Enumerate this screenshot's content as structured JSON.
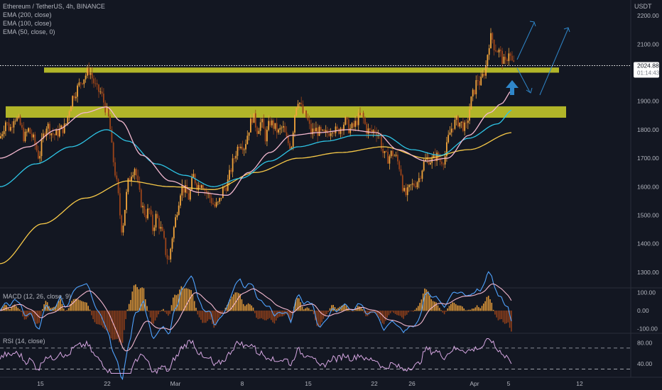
{
  "chart_data": {
    "type": "candlestick",
    "title": "Ethereum / TetherUS, 4h, BINANCE",
    "currency": "USDT",
    "legend": [
      "EMA (200, close)",
      "EMA (100, close)",
      "EMA (50, close, 0)"
    ],
    "price": {
      "current": "2024.88",
      "countdown": "01:14:43",
      "ticks": [
        "2200.00",
        "2100.00",
        "2000.00",
        "1900.00",
        "1800.00",
        "1700.00",
        "1600.00",
        "1500.00",
        "1400.00",
        "1300.00"
      ],
      "ylim": [
        1260,
        2240
      ],
      "close_path": [
        [
          0,
          1770
        ],
        [
          8,
          1830
        ],
        [
          14,
          1800
        ],
        [
          20,
          1850
        ],
        [
          28,
          1820
        ],
        [
          34,
          1770
        ],
        [
          40,
          1800
        ],
        [
          48,
          1760
        ],
        [
          55,
          1700
        ],
        [
          60,
          1770
        ],
        [
          66,
          1820
        ],
        [
          72,
          1790
        ],
        [
          78,
          1780
        ],
        [
          85,
          1800
        ],
        [
          92,
          1810
        ],
        [
          98,
          1880
        ],
        [
          103,
          1920
        ],
        [
          108,
          1940
        ],
        [
          114,
          1970
        ],
        [
          120,
          1990
        ],
        [
          126,
          2010
        ],
        [
          130,
          1980
        ],
        [
          136,
          1940
        ],
        [
          142,
          1930
        ],
        [
          148,
          1880
        ],
        [
          154,
          1830
        ],
        [
          158,
          1720
        ],
        [
          162,
          1650
        ],
        [
          166,
          1580
        ],
        [
          169,
          1500
        ],
        [
          172,
          1440
        ],
        [
          176,
          1530
        ],
        [
          180,
          1610
        ],
        [
          185,
          1650
        ],
        [
          190,
          1670
        ],
        [
          195,
          1590
        ],
        [
          200,
          1530
        ],
        [
          205,
          1500
        ],
        [
          210,
          1520
        ],
        [
          215,
          1450
        ],
        [
          220,
          1500
        ],
        [
          225,
          1460
        ],
        [
          230,
          1420
        ],
        [
          234,
          1360
        ],
        [
          238,
          1340
        ],
        [
          242,
          1420
        ],
        [
          246,
          1470
        ],
        [
          250,
          1530
        ],
        [
          255,
          1600
        ],
        [
          260,
          1590
        ],
        [
          266,
          1560
        ],
        [
          272,
          1640
        ],
        [
          278,
          1600
        ],
        [
          284,
          1620
        ],
        [
          290,
          1580
        ],
        [
          296,
          1560
        ],
        [
          302,
          1530
        ],
        [
          308,
          1540
        ],
        [
          314,
          1590
        ],
        [
          320,
          1610
        ],
        [
          326,
          1670
        ],
        [
          332,
          1720
        ],
        [
          338,
          1760
        ],
        [
          344,
          1740
        ],
        [
          350,
          1800
        ],
        [
          356,
          1850
        ],
        [
          362,
          1800
        ],
        [
          368,
          1830
        ],
        [
          374,
          1770
        ],
        [
          380,
          1830
        ],
        [
          386,
          1810
        ],
        [
          392,
          1790
        ],
        [
          398,
          1810
        ],
        [
          404,
          1760
        ],
        [
          410,
          1740
        ],
        [
          416,
          1880
        ],
        [
          420,
          1910
        ],
        [
          426,
          1860
        ],
        [
          432,
          1840
        ],
        [
          438,
          1790
        ],
        [
          444,
          1800
        ],
        [
          450,
          1790
        ],
        [
          456,
          1780
        ],
        [
          462,
          1790
        ],
        [
          468,
          1810
        ],
        [
          474,
          1790
        ],
        [
          480,
          1810
        ],
        [
          486,
          1830
        ],
        [
          492,
          1800
        ],
        [
          498,
          1810
        ],
        [
          504,
          1840
        ],
        [
          510,
          1850
        ],
        [
          516,
          1800
        ],
        [
          522,
          1790
        ],
        [
          528,
          1800
        ],
        [
          534,
          1780
        ],
        [
          540,
          1710
        ],
        [
          546,
          1700
        ],
        [
          552,
          1720
        ],
        [
          558,
          1700
        ],
        [
          564,
          1660
        ],
        [
          568,
          1580
        ],
        [
          572,
          1570
        ],
        [
          578,
          1600
        ],
        [
          584,
          1610
        ],
        [
          590,
          1630
        ],
        [
          596,
          1680
        ],
        [
          602,
          1700
        ],
        [
          608,
          1690
        ],
        [
          614,
          1710
        ],
        [
          620,
          1690
        ],
        [
          626,
          1700
        ],
        [
          632,
          1780
        ],
        [
          638,
          1820
        ],
        [
          644,
          1830
        ],
        [
          650,
          1820
        ],
        [
          656,
          1800
        ],
        [
          660,
          1860
        ],
        [
          664,
          1910
        ],
        [
          668,
          1940
        ],
        [
          672,
          1980
        ],
        [
          676,
          1960
        ],
        [
          680,
          1990
        ],
        [
          684,
          2020
        ],
        [
          688,
          2100
        ],
        [
          692,
          2130
        ],
        [
          696,
          2090
        ],
        [
          700,
          2080
        ],
        [
          704,
          2070
        ],
        [
          708,
          2040
        ],
        [
          712,
          2030
        ],
        [
          716,
          2080
        ],
        [
          720,
          2040
        ],
        [
          724,
          2025
        ]
      ]
    },
    "ema": [
      {
        "label": "EMA (200, close)",
        "color": "#f7c948",
        "points": [
          [
            0,
            1330
          ],
          [
            60,
            1470
          ],
          [
            120,
            1560
          ],
          [
            180,
            1620
          ],
          [
            240,
            1600
          ],
          [
            300,
            1590
          ],
          [
            360,
            1650
          ],
          [
            420,
            1700
          ],
          [
            480,
            1720
          ],
          [
            540,
            1740
          ],
          [
            600,
            1700
          ],
          [
            660,
            1730
          ],
          [
            722,
            1790
          ]
        ]
      },
      {
        "label": "EMA (100, close)",
        "color": "#2ec5e6",
        "points": [
          [
            0,
            1600
          ],
          [
            50,
            1680
          ],
          [
            100,
            1740
          ],
          [
            150,
            1800
          ],
          [
            180,
            1760
          ],
          [
            220,
            1680
          ],
          [
            260,
            1640
          ],
          [
            300,
            1600
          ],
          [
            340,
            1630
          ],
          [
            380,
            1690
          ],
          [
            420,
            1740
          ],
          [
            460,
            1760
          ],
          [
            500,
            1780
          ],
          [
            540,
            1780
          ],
          [
            580,
            1730
          ],
          [
            620,
            1710
          ],
          [
            660,
            1770
          ],
          [
            700,
            1820
          ],
          [
            722,
            1870
          ]
        ]
      },
      {
        "label": "EMA (50, close, 0)",
        "color": "#f3b8d0",
        "points": [
          [
            0,
            1700
          ],
          [
            40,
            1740
          ],
          [
            80,
            1800
          ],
          [
            120,
            1860
          ],
          [
            150,
            1880
          ],
          [
            170,
            1830
          ],
          [
            200,
            1710
          ],
          [
            240,
            1620
          ],
          [
            280,
            1580
          ],
          [
            320,
            1570
          ],
          [
            350,
            1650
          ],
          [
            380,
            1720
          ],
          [
            410,
            1780
          ],
          [
            450,
            1790
          ],
          [
            490,
            1800
          ],
          [
            530,
            1790
          ],
          [
            560,
            1730
          ],
          [
            600,
            1690
          ],
          [
            630,
            1700
          ],
          [
            660,
            1780
          ],
          [
            690,
            1860
          ],
          [
            705,
            1890
          ],
          [
            722,
            1940
          ]
        ]
      }
    ],
    "zones": [
      {
        "label": "resistance",
        "from": 2000,
        "to": 2018,
        "x_start": 62,
        "x_end": 787
      },
      {
        "label": "support",
        "from": 1842,
        "to": 1882,
        "x_start": 8,
        "x_end": 797
      }
    ],
    "macd": {
      "label": "MACD (12, 26, close, 9)",
      "ticks": [
        "100.00",
        "0.00",
        "-100.00"
      ],
      "ylim": [
        -110,
        110
      ]
    },
    "rsi": {
      "label": "RSI (14, close)",
      "ticks": [
        "80.00",
        "40.00"
      ],
      "ylim": [
        20,
        90
      ]
    },
    "x_ticks": [
      "15",
      "22",
      "Mar",
      "8",
      "15",
      "22",
      "26",
      "Apr",
      "5",
      "12"
    ]
  },
  "colors": {
    "background": "#131722",
    "up_candle": "#f2a43b",
    "down_candle": "#9c4419",
    "zone": "#c3c72a",
    "arrow": "#2f86c9",
    "price_line": "#ffffff",
    "macd_line": "#4fa3ff",
    "signal_line": "#f3b8d0",
    "rsi_line": "#d7a7e3"
  }
}
